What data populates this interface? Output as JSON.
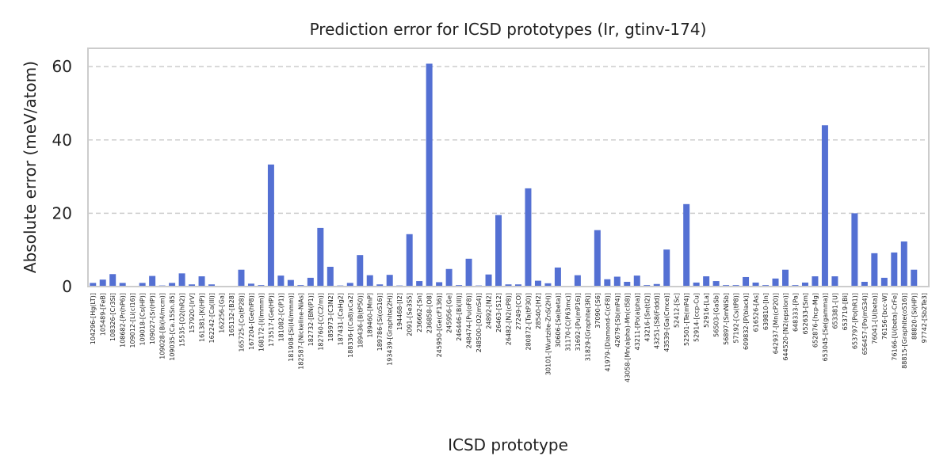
{
  "chart_data": {
    "type": "bar",
    "title": "Prediction error for ICSD prototypes (Ir, gtinv-174)",
    "xlabel": "ICSD prototype",
    "ylabel": "Absolute error (meV/atom)",
    "ylim": [
      0,
      65
    ],
    "yticks": [
      0,
      20,
      40,
      60
    ],
    "grid": "horizontal-dashed",
    "bar_color": "#5470d3",
    "categories": [
      "104296-[Hg(LT)]",
      "105489-[FeB]",
      "108326-[Cr3Si]",
      "108682-[Pr(hP6)]",
      "109012-[Li(cI16)]",
      "109018-[Cs(HP)]",
      "109027-[Sr(HP)]",
      "109028-[Bi(I4/mcm)]",
      "109035-[Ca.15Sn.85]",
      "15535-[O2(hR2)]",
      "157920-[IrV]",
      "161381-[K(HP)]",
      "162242-[Ca(III)]",
      "162256-[Ga]",
      "165132-[B28]",
      "165725-[Co(tP28)]",
      "167204-[Ge(hP8)]",
      "168172-[I(Immm)]",
      "173517-[Ge(HP)]",
      "181082-[C(P1)]",
      "181908-[Si(I4/mmm)]",
      "182587-[Nickeline-NiAs]",
      "182732-[BN(P1)]",
      "182760-[C(C2/m)]",
      "185973-[C3N2]",
      "187431-[CaHg2]",
      "188336-[(Ca8)xCa2]",
      "189436-[B(tP50)]",
      "189460-[MnP]",
      "189786-[Si(oS16)]",
      "193439-[Graphite(2H)]",
      "194468-[I2]",
      "2091-[Se3S5]",
      "236662-[Sn]",
      "236858-[O8]",
      "245950-[Ge(cF136)]",
      "245956-[Ge]",
      "246446-[Bi(III)]",
      "248474-[Pu(oF8)]",
      "248500-[O2(mS4)]",
      "24892-[N2]",
      "26463-[S12]",
      "26482-[N2(cP8)]",
      "27249-[CO]",
      "280872-[Ta(tP30)]",
      "28540-[H2]",
      "30101-[Wurtzite-ZnS(2H)]",
      "30606-[Se(beta)]",
      "31170-[C(P63mc)]",
      "31692-[Pu(mP16)]",
      "31829-[Graphite(3R)]",
      "37090-[S6]",
      "41979-[Diamond-C(cF8)]",
      "42679-[Sb(mP4)]",
      "43058-[Mn(alpha)-Mn(cI58)]",
      "43211-[Po(alpha)]",
      "43216-[Sn(tI2)]",
      "43251-[S8(Fddd)]",
      "43539-[Ga(Cmce)]",
      "52412-[Sc]",
      "52501-[Te(mP4)]",
      "52914-[ccp-Cu]",
      "52916-[La]",
      "56503-[GaSb]",
      "56897-[SmNiSb]",
      "57192-[Cs(tP8)]",
      "609832-[P(black)]",
      "616526-[As]",
      "639810-[In]",
      "642937-[Mn(cP20)]",
      "644520-[N2(epsilon)]",
      "648333-[Pa]",
      "652633-[Sm]",
      "652876-[hcp-Mg]",
      "653045-[Se(gamma)]",
      "653381-[U]",
      "653719-[Bi]",
      "653797-[Po(hR1)]",
      "656457-[Po(mS34)]",
      "76041-[U(beta)]",
      "76156-[bcc-W]",
      "76166-[U(beta)-CrFe]",
      "88815-[Graphite(oS16)]",
      "88820-[Si(HP)]",
      "97742-[Sb2Te3]"
    ],
    "values": [
      1.0,
      1.9,
      3.4,
      1.0,
      0.2,
      1.0,
      2.9,
      0.3,
      1.0,
      3.6,
      0.6,
      2.8,
      0.6,
      0.2,
      0.2,
      4.6,
      0.8,
      0.4,
      33.3,
      3.0,
      1.8,
      0.4,
      2.4,
      16.0,
      5.4,
      0.3,
      1.0,
      8.6,
      3.1,
      0.6,
      3.2,
      0.3,
      14.3,
      1.5,
      60.8,
      1.2,
      4.8,
      0.4,
      7.6,
      0.3,
      3.3,
      19.5,
      0.6,
      0.6,
      26.8,
      1.6,
      0.9,
      5.2,
      0.2,
      3.1,
      0.2,
      15.4,
      2.0,
      2.7,
      1.3,
      3.0,
      0.4,
      0.7,
      10.1,
      0.2,
      22.5,
      1.1,
      2.8,
      1.5,
      0.4,
      0.4,
      2.6,
      1.1,
      0.4,
      2.2,
      4.6,
      0.4,
      1.1,
      2.8,
      44.0,
      2.8,
      0.2,
      20.0,
      1.3,
      9.1,
      2.4,
      9.3,
      12.3,
      4.6,
      0.2
    ]
  }
}
